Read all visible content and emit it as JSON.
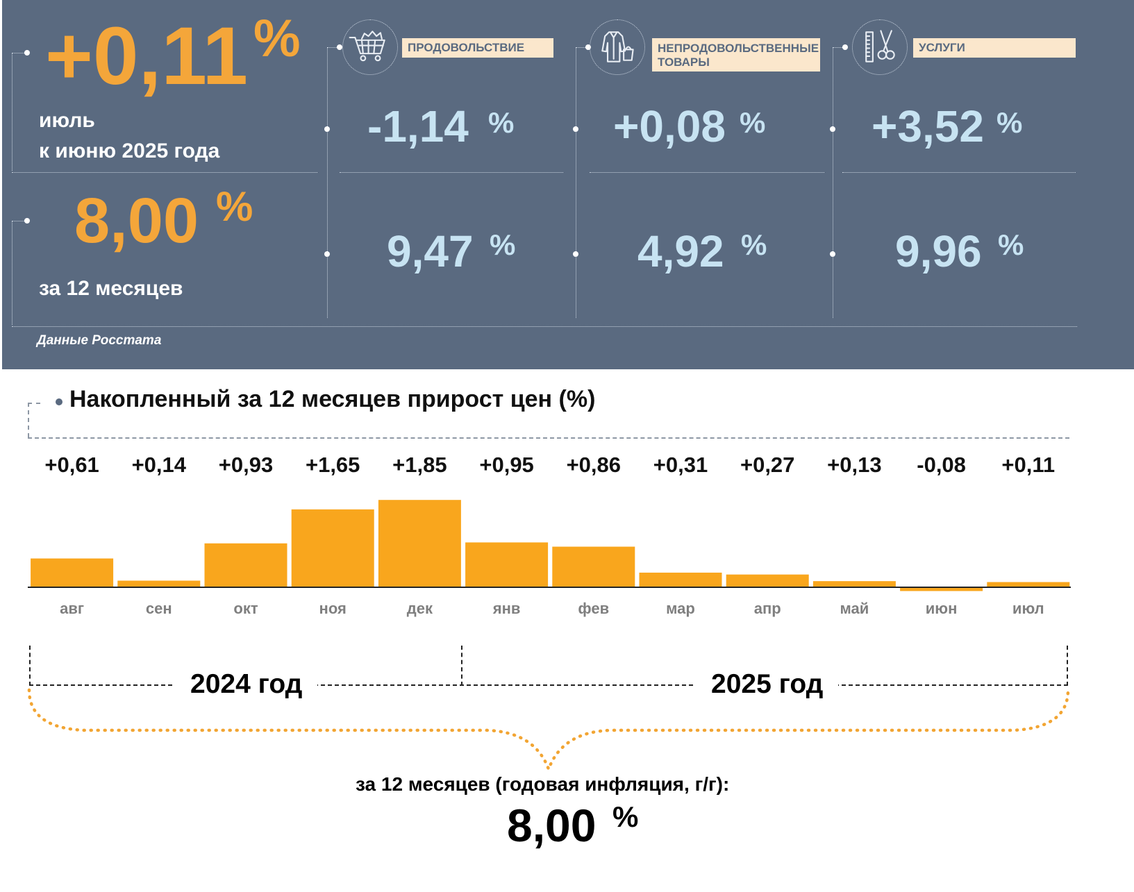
{
  "top": {
    "month_change": {
      "value": "+0,11",
      "unit": "%",
      "line1": "июль",
      "line2": "к июню 2025 года"
    },
    "annual": {
      "value": "8,00",
      "unit": "%",
      "caption": "за 12 месяцев"
    },
    "categories": [
      {
        "label": "ПРОДОВОЛЬСТВИЕ",
        "icon": "shopping-cart-icon",
        "month": "-1,14",
        "year": "9,47",
        "unit": "%"
      },
      {
        "label": "НЕПРОДОВОЛЬСТВЕННЫЕ ТОВАРЫ",
        "label_line1": "НЕПРОДОВОЛЬСТВЕННЫЕ",
        "label_line2": "ТОВАРЫ",
        "icon": "clothing-icon",
        "month": "+0,08",
        "year": "4,92",
        "unit": "%"
      },
      {
        "label": "УСЛУГИ",
        "icon": "scissors-comb-icon",
        "month": "+3,52",
        "year": "9,96",
        "unit": "%"
      }
    ],
    "source": "Данные Росстата",
    "colors": {
      "panel": "#5a6a80",
      "accent": "#f4a63a",
      "value_blue": "#c7e3f2",
      "label_bg": "#fbe7cc"
    }
  },
  "chart_data": {
    "type": "bar",
    "title": "Накопленный за 12 месяцев прирост цен (%)",
    "categories": [
      "авг",
      "сен",
      "окт",
      "ноя",
      "дек",
      "янв",
      "фев",
      "мар",
      "апр",
      "май",
      "июн",
      "июл"
    ],
    "values": [
      0.61,
      0.14,
      0.93,
      1.65,
      1.85,
      0.95,
      0.86,
      0.31,
      0.27,
      0.13,
      -0.08,
      0.11
    ],
    "value_labels": [
      "+0,61",
      "+0,14",
      "+0,93",
      "+1,65",
      "+1,85",
      "+0,95",
      "+0,86",
      "+0,31",
      "+0,27",
      "+0,13",
      "-0,08",
      "+0,11"
    ],
    "bar_color": "#f9a61d",
    "groups": [
      {
        "label": "2024 год",
        "from": "авг",
        "to": "дек"
      },
      {
        "label": "2025 год",
        "from": "янв",
        "to": "июл"
      }
    ],
    "total": {
      "caption": "за 12 месяцев (годовая инфляция, г/г):",
      "value": "8,00",
      "unit": "%"
    }
  }
}
